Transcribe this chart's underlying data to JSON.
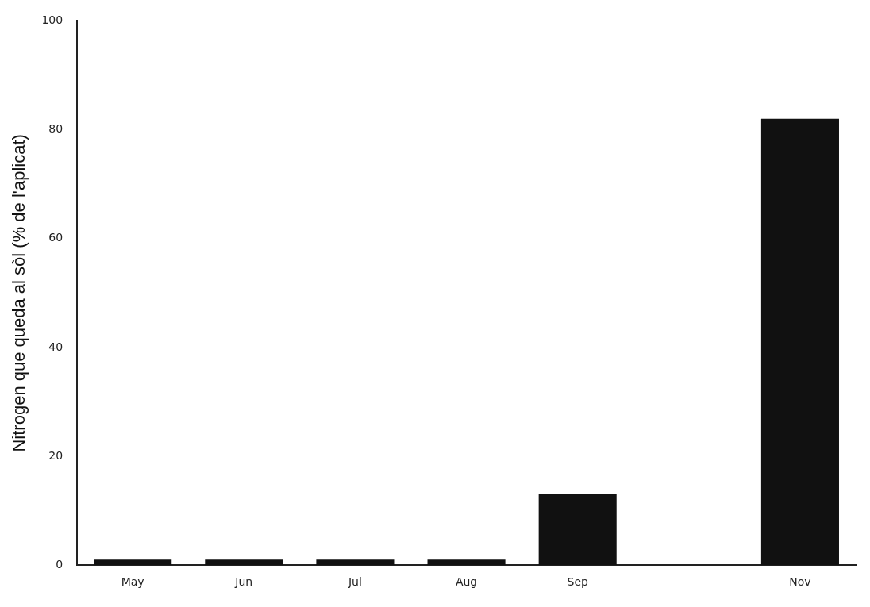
{
  "chart_data": {
    "type": "bar",
    "ylabel": "Nitrogen que queda al sòl (% de l'aplicat)",
    "categories": [
      "May",
      "Jun",
      "Jul",
      "Aug",
      "Sep",
      null,
      "Nov"
    ],
    "values": [
      1,
      1,
      1,
      1,
      13,
      null,
      82
    ],
    "color": "#111111",
    "ylim": [
      0,
      100
    ],
    "yticks": [
      0,
      20,
      40,
      60,
      80,
      100
    ],
    "grid": false,
    "legend": false
  }
}
